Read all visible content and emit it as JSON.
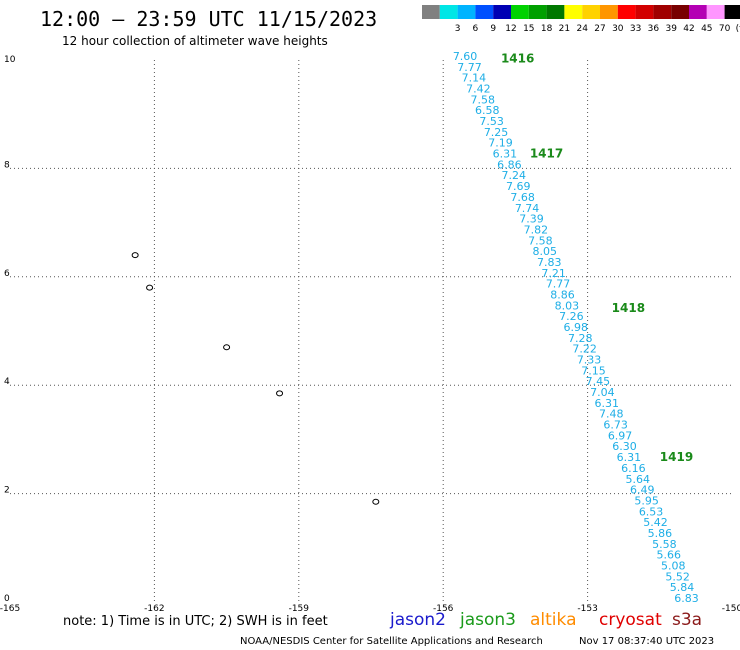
{
  "header": {
    "title": "12:00 – 23:59 UTC 11/15/2023",
    "subtitle": "12 hour collection of altimeter wave heights"
  },
  "legend": {
    "bins": [
      {
        "label": "",
        "color": "#808080"
      },
      {
        "label": "3",
        "color": "#00e6e6"
      },
      {
        "label": "6",
        "color": "#00b4ff"
      },
      {
        "label": "9",
        "color": "#0050ff"
      },
      {
        "label": "12",
        "color": "#0000b4"
      },
      {
        "label": "15",
        "color": "#00d200"
      },
      {
        "label": "18",
        "color": "#00a000"
      },
      {
        "label": "21",
        "color": "#007800"
      },
      {
        "label": "24",
        "color": "#ffff00"
      },
      {
        "label": "27",
        "color": "#ffd200"
      },
      {
        "label": "30",
        "color": "#ff9600"
      },
      {
        "label": "33",
        "color": "#ff0000"
      },
      {
        "label": "36",
        "color": "#d20000"
      },
      {
        "label": "39",
        "color": "#a00000"
      },
      {
        "label": "42",
        "color": "#780000"
      },
      {
        "label": "45",
        "color": "#b400b4"
      },
      {
        "label": "70",
        "color": "#ff96ff"
      },
      {
        "label": "(ft)",
        "color": "#000000"
      }
    ]
  },
  "chart_data": {
    "type": "scatter",
    "title": "12:00 – 23:59 UTC 11/15/2023",
    "subtitle": "12 hour collection of altimeter wave heights",
    "xlim": [
      -165,
      -150
    ],
    "ylim": [
      0,
      10
    ],
    "x_ticks": [
      "-165",
      "-162",
      "-159",
      "-156",
      "-153",
      "-150"
    ],
    "x_tick_values": [
      -165,
      -162,
      -159,
      -156,
      -153,
      -150
    ],
    "y_ticks": [
      "0",
      "2",
      "4",
      "6",
      "8",
      "10"
    ],
    "y_tick_values": [
      0,
      2,
      4,
      6,
      8,
      10
    ],
    "grid": true,
    "units": "ft",
    "track": {
      "satellite": "jason3",
      "lon_start": -155.8,
      "lat_start": 10.0,
      "lon_end": -151.2,
      "lat_end": 0.0,
      "swh_ft": [
        "7.60",
        "7.77",
        "7.14",
        "7.42",
        "7.58",
        "6.58",
        "7.53",
        "7.25",
        "7.19",
        "6.31",
        "6.86",
        "7.24",
        "7.69",
        "7.68",
        "7.74",
        "7.39",
        "7.82",
        "7.58",
        "8.05",
        "7.83",
        "7.21",
        "7.77",
        "8.86",
        "8.03",
        "7.26",
        "6.98",
        "7.28",
        "7.22",
        "7.33",
        "7.15",
        "7.45",
        "7.04",
        "6.31",
        "7.48",
        "6.73",
        "6.97",
        "6.30",
        "6.31",
        "6.16",
        "5.64",
        "6.49",
        "5.95",
        "6.53",
        "5.42",
        "5.86",
        "5.58",
        "5.66",
        "5.08",
        "5.52",
        "5.84",
        "6.83"
      ]
    },
    "pass_labels": [
      {
        "text": "1416",
        "lon": -154.8,
        "lat": 9.95
      },
      {
        "text": "1417",
        "lon": -154.2,
        "lat": 8.2
      },
      {
        "text": "1418",
        "lon": -152.5,
        "lat": 5.35
      },
      {
        "text": "1419",
        "lon": -151.5,
        "lat": 2.6
      }
    ],
    "islands": [
      {
        "name": "",
        "lon": -162.4,
        "lat": 6.4
      },
      {
        "name": "",
        "lon": -162.1,
        "lat": 5.8
      },
      {
        "name": "",
        "lon": -160.5,
        "lat": 4.7
      },
      {
        "name": "",
        "lon": -159.4,
        "lat": 3.85
      },
      {
        "name": "",
        "lon": -157.4,
        "lat": 1.85
      }
    ]
  },
  "notes": {
    "note": "note: 1) Time is in UTC; 2) SWH is in feet"
  },
  "satellites": [
    {
      "name": "jason2",
      "color": "#1a1acc"
    },
    {
      "name": "jason3",
      "color": "#1a9a1a"
    },
    {
      "name": "altika",
      "color": "#ff8c00"
    },
    {
      "name": "cryosat",
      "color": "#e00000"
    },
    {
      "name": "s3a",
      "color": "#8b1a1a"
    }
  ],
  "footer": {
    "agency": "NOAA/NESDIS Center for Satellite Applications and Research",
    "timestamp": "Nov 17 08:37:40 UTC 2023"
  }
}
